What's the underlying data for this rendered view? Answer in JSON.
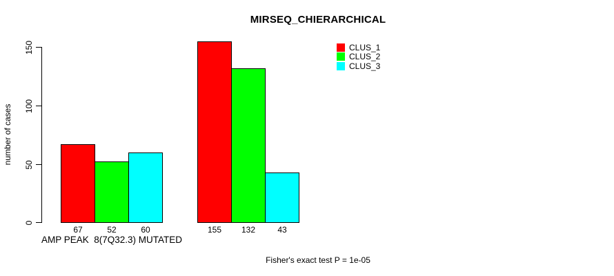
{
  "title": "MIRSEQ_CHIERARCHICAL",
  "footer": "Fisher's exact test P = 1e-05",
  "chart_data": {
    "type": "bar",
    "title": "MIRSEQ_CHIERARCHICAL",
    "xlabel": "",
    "ylabel": "number of cases",
    "ylim": [
      0,
      150
    ],
    "yticks": [
      0,
      50,
      100,
      150
    ],
    "grid": false,
    "legend_position": "top-right",
    "categories": [
      "AMP PEAK  8(7Q32.3) MUTATED",
      ""
    ],
    "series": [
      {
        "name": "CLUS_1",
        "color": "#ff0000",
        "values": [
          67,
          155
        ]
      },
      {
        "name": "CLUS_2",
        "color": "#00ff00",
        "values": [
          52,
          132
        ]
      },
      {
        "name": "CLUS_3",
        "color": "#00ffff",
        "values": [
          60,
          43
        ]
      }
    ],
    "bar_value_labels": [
      [
        "67",
        "52",
        "60"
      ],
      [
        "155",
        "132",
        "43"
      ]
    ],
    "annotation": "Fisher's exact test P = 1e-05"
  }
}
